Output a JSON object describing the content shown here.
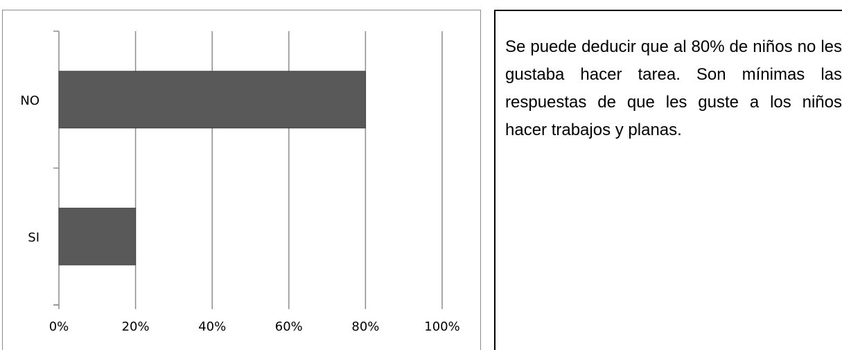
{
  "chart_data": {
    "type": "bar",
    "orientation": "horizontal",
    "categories": [
      "NO",
      "SI"
    ],
    "values": [
      80,
      20
    ],
    "xlim": [
      0,
      100
    ],
    "x_ticks": [
      "0%",
      "20%",
      "40%",
      "60%",
      "80%",
      "100%"
    ],
    "grid": true,
    "legend": "none",
    "bar_color": "#595959",
    "gridline_color": "#8c8c8c"
  },
  "description": {
    "text": "Se puede deducir que al 80% de niños no les gustaba hacer tarea. Son mínimas las respuestas de que les guste a los niños hacer trabajos y planas."
  }
}
